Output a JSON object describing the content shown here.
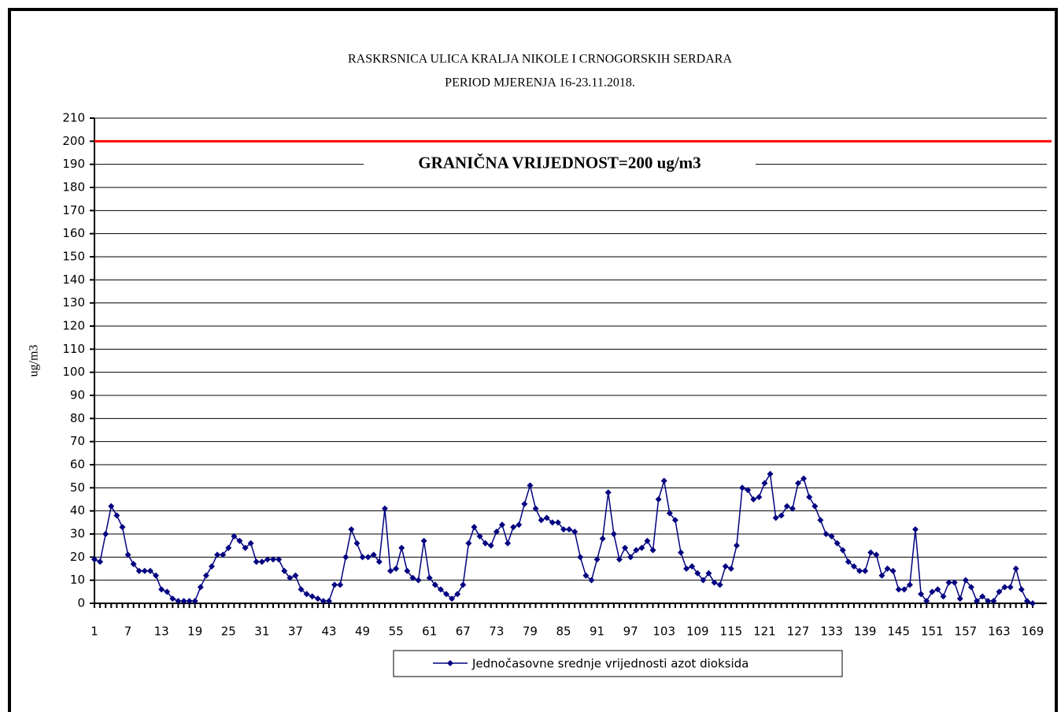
{
  "chart_data": {
    "type": "line",
    "title": "RASKRSNICA ULICA  KRALJA NIKOLE I CRNOGORSKIH SERDARA",
    "subtitle": "PERIOD MJERENJA  16-23.11.2018.",
    "y_label": "ug/m3",
    "categories": [
      "1",
      null,
      null,
      null,
      null,
      null,
      "7",
      null,
      null,
      null,
      null,
      null,
      "13",
      null,
      null,
      null,
      null,
      null,
      "19",
      null,
      null,
      null,
      null,
      null,
      "25",
      null,
      null,
      null,
      null,
      null,
      "31",
      null,
      null,
      null,
      null,
      null,
      "37",
      null,
      null,
      null,
      null,
      null,
      "43",
      null,
      null,
      null,
      null,
      null,
      "49",
      null,
      null,
      null,
      null,
      null,
      "55",
      null,
      null,
      null,
      null,
      null,
      "61",
      null,
      null,
      null,
      null,
      null,
      "67",
      null,
      null,
      null,
      null,
      null,
      "73",
      null,
      null,
      null,
      null,
      null,
      "79",
      null,
      null,
      null,
      null,
      null,
      "85",
      null,
      null,
      null,
      null,
      null,
      "91",
      null,
      null,
      null,
      null,
      null,
      "97",
      null,
      null,
      null,
      null,
      null,
      "103",
      null,
      null,
      null,
      null,
      null,
      "109",
      null,
      null,
      null,
      null,
      null,
      "115",
      null,
      null,
      null,
      null,
      null,
      "121",
      null,
      null,
      null,
      null,
      null,
      "127",
      null,
      null,
      null,
      null,
      null,
      "133",
      null,
      null,
      null,
      null,
      null,
      "139",
      null,
      null,
      null,
      null,
      null,
      "145",
      null,
      null,
      null,
      null,
      null,
      "151",
      null,
      null,
      null,
      null,
      null,
      "157",
      null,
      null,
      null,
      null,
      null,
      "163",
      null,
      null,
      null,
      null,
      null,
      "169"
    ],
    "series": [
      {
        "name": "Jednočasovne srednje vrijednosti azot dioksida",
        "color": "#000080",
        "values": [
          19,
          18,
          30,
          42,
          38,
          33,
          21,
          17,
          14,
          14,
          14,
          12,
          6,
          5,
          2,
          1,
          1,
          1,
          1,
          7,
          12,
          16,
          21,
          21,
          24,
          29,
          27,
          24,
          26,
          18,
          18,
          19,
          19,
          19,
          14,
          11,
          12,
          6,
          4,
          3,
          2,
          1,
          1,
          8,
          8,
          20,
          32,
          26,
          20,
          20,
          21,
          18,
          41,
          14,
          15,
          24,
          14,
          11,
          10,
          27,
          11,
          8,
          6,
          4,
          2,
          4,
          8,
          26,
          33,
          29,
          26,
          25,
          31,
          34,
          26,
          33,
          34,
          43,
          51,
          41,
          36,
          37,
          35,
          35,
          32,
          32,
          31,
          20,
          12,
          10,
          19,
          28,
          48,
          30,
          19,
          24,
          20,
          23,
          24,
          27,
          23,
          45,
          53,
          39,
          36,
          22,
          15,
          16,
          13,
          10,
          13,
          9,
          8,
          16,
          15,
          25,
          50,
          49,
          45,
          46,
          52,
          56,
          37,
          38,
          42,
          41,
          52,
          54,
          46,
          42,
          36,
          30,
          29,
          26,
          23,
          18,
          16,
          14,
          14,
          22,
          21,
          12,
          15,
          14,
          6,
          6,
          8,
          32,
          4,
          1,
          5,
          6,
          3,
          9,
          9,
          2,
          10,
          7,
          1,
          3,
          1,
          1,
          5,
          7,
          7,
          15,
          6,
          1,
          0
        ]
      }
    ],
    "reference_line": {
      "value": 200,
      "label": "GRANIČNA VRIJEDNOST=200 ug/m3",
      "color": "#ff0000"
    },
    "ylim": [
      0,
      210
    ],
    "yticks": [
      0,
      10,
      20,
      30,
      40,
      50,
      60,
      70,
      80,
      90,
      100,
      110,
      120,
      130,
      140,
      150,
      160,
      170,
      180,
      190,
      200,
      210
    ],
    "grid": true,
    "legend": "bottom"
  }
}
